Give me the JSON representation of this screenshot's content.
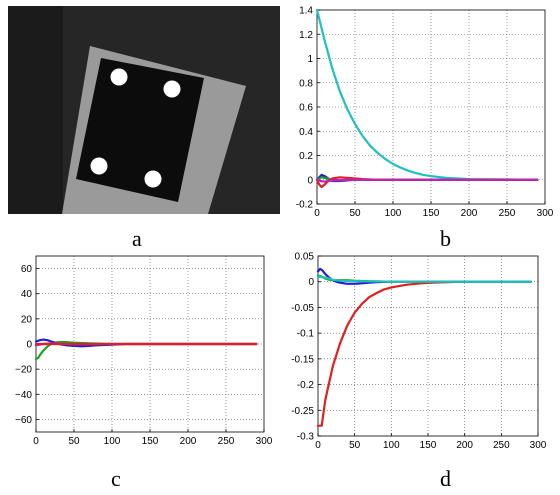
{
  "panel_labels": {
    "a": "a",
    "b": "b",
    "c": "c",
    "d": "d"
  },
  "image_a": {
    "subject": "grayscale camera image of a dark square target with four white circular dots mounted on a light panel",
    "dots": 4
  },
  "chart_data": [
    {
      "id": "b",
      "type": "line",
      "title": "",
      "xlabel": "",
      "ylabel": "",
      "xlim": [
        0,
        300
      ],
      "ylim": [
        -0.2,
        1.4
      ],
      "xticks": [
        0,
        50,
        100,
        150,
        200,
        250,
        300
      ],
      "yticks": [
        -0.2,
        0,
        0.2,
        0.4,
        0.6,
        0.8,
        1,
        1.2,
        1.4
      ],
      "ytick_labels": [
        "-0.2",
        "0",
        "0.2",
        "0.4",
        "0.6",
        "0.8",
        "1",
        "1.2",
        "1.4"
      ],
      "grid": true,
      "series": [
        {
          "color": "#20c0c0",
          "x": [
            0,
            10,
            20,
            30,
            40,
            50,
            60,
            70,
            80,
            90,
            100,
            110,
            120,
            130,
            140,
            150,
            170,
            200,
            250,
            290
          ],
          "y": [
            1.4,
            1.15,
            0.92,
            0.73,
            0.58,
            0.46,
            0.36,
            0.28,
            0.22,
            0.17,
            0.13,
            0.1,
            0.075,
            0.055,
            0.04,
            0.03,
            0.015,
            0.005,
            0.002,
            0
          ]
        },
        {
          "color": "#2020d0",
          "x": [
            0,
            3,
            6,
            10,
            15,
            20,
            30,
            40,
            50,
            70,
            100,
            150,
            290
          ],
          "y": [
            0,
            0.02,
            0.04,
            0.03,
            0.01,
            -0.01,
            -0.01,
            -0.005,
            0,
            0,
            0,
            0,
            0
          ]
        },
        {
          "color": "#20a020",
          "x": [
            0,
            3,
            6,
            10,
            15,
            20,
            30,
            40,
            60,
            100,
            150,
            290
          ],
          "y": [
            0,
            0.01,
            0.02,
            0.015,
            0.005,
            0,
            -0.005,
            0,
            0,
            0,
            0,
            0
          ]
        },
        {
          "color": "#e02020",
          "x": [
            0,
            3,
            6,
            10,
            15,
            20,
            30,
            40,
            50,
            60,
            80,
            100,
            150,
            290
          ],
          "y": [
            0,
            -0.04,
            -0.06,
            -0.04,
            -0.01,
            0.01,
            0.02,
            0.015,
            0.01,
            0.005,
            0,
            0,
            0,
            0
          ]
        },
        {
          "color": "#c020c0",
          "x": [
            0,
            5,
            10,
            20,
            40,
            290
          ],
          "y": [
            0,
            -0.01,
            -0.015,
            -0.005,
            0,
            0
          ]
        }
      ]
    },
    {
      "id": "c",
      "type": "line",
      "title": "",
      "xlabel": "",
      "ylabel": "",
      "xlim": [
        0,
        300
      ],
      "ylim": [
        -70,
        70
      ],
      "xticks": [
        0,
        50,
        100,
        150,
        200,
        250,
        300
      ],
      "yticks": [
        -60,
        -40,
        -20,
        0,
        20,
        40,
        60
      ],
      "ytick_labels": [
        "−60",
        "−40",
        "−20",
        "0",
        "20",
        "40",
        "60"
      ],
      "grid": true,
      "series": [
        {
          "color": "#20a020",
          "x": [
            0,
            3,
            6,
            10,
            15,
            20,
            25,
            30,
            40,
            50,
            70,
            100,
            150,
            200,
            250,
            290
          ],
          "y": [
            -12,
            -11,
            -8,
            -5,
            -2,
            0,
            1,
            1.5,
            1.5,
            1,
            0.5,
            0,
            0,
            0,
            0,
            0
          ]
        },
        {
          "color": "#2020d0",
          "x": [
            0,
            5,
            10,
            15,
            20,
            25,
            30,
            40,
            50,
            60,
            70,
            80,
            100,
            120,
            150,
            200,
            290
          ],
          "y": [
            2,
            3,
            3.5,
            3,
            2,
            1,
            0,
            -1,
            -1.5,
            -1.8,
            -1.5,
            -1,
            -0.5,
            0,
            0,
            0,
            0
          ]
        },
        {
          "color": "#c020c0",
          "x": [
            0,
            5,
            10,
            20,
            30,
            40,
            50,
            70,
            100,
            150,
            290
          ],
          "y": [
            -1,
            -0.5,
            0,
            0.5,
            0.3,
            0,
            -0.2,
            -0.3,
            0,
            0,
            0
          ]
        },
        {
          "color": "#e02020",
          "x": [
            0,
            20,
            50,
            100,
            150,
            200,
            250,
            290
          ],
          "y": [
            0,
            0,
            0,
            0,
            0,
            0,
            0,
            0
          ]
        }
      ]
    },
    {
      "id": "d",
      "type": "line",
      "title": "",
      "xlabel": "",
      "ylabel": "",
      "xlim": [
        0,
        300
      ],
      "ylim": [
        -0.3,
        0.05
      ],
      "xticks": [
        0,
        50,
        100,
        150,
        200,
        250,
        300
      ],
      "yticks": [
        -0.3,
        -0.25,
        -0.2,
        -0.15,
        -0.1,
        -0.05,
        0,
        0.05
      ],
      "ytick_labels": [
        "-0.3",
        "-0.25",
        "-0.2",
        "-0.15",
        "-0.1",
        "-0.05",
        "0",
        "0.05"
      ],
      "grid": true,
      "series": [
        {
          "color": "#e02020",
          "x": [
            0,
            5,
            10,
            20,
            30,
            40,
            50,
            60,
            70,
            80,
            90,
            100,
            120,
            140,
            160,
            200,
            250,
            290
          ],
          "y": [
            -0.28,
            -0.28,
            -0.23,
            -0.165,
            -0.12,
            -0.085,
            -0.06,
            -0.043,
            -0.03,
            -0.022,
            -0.015,
            -0.011,
            -0.006,
            -0.003,
            -0.0015,
            0,
            0,
            0
          ]
        },
        {
          "color": "#2020d0",
          "x": [
            0,
            3,
            6,
            10,
            15,
            20,
            25,
            30,
            40,
            50,
            60,
            70,
            80,
            100,
            150,
            290
          ],
          "y": [
            0.02,
            0.025,
            0.022,
            0.015,
            0.008,
            0.003,
            0,
            -0.002,
            -0.004,
            -0.004,
            -0.003,
            -0.002,
            -0.001,
            0,
            0,
            0
          ]
        },
        {
          "color": "#20a020",
          "x": [
            0,
            5,
            10,
            15,
            20,
            30,
            40,
            50,
            70,
            100,
            150,
            290
          ],
          "y": [
            0.012,
            0.01,
            0.006,
            0.004,
            0.003,
            0.003,
            0.003,
            0.002,
            0.001,
            0,
            0,
            0
          ]
        },
        {
          "color": "#20c0c0",
          "x": [
            0,
            10,
            20,
            30,
            50,
            100,
            150,
            290
          ],
          "y": [
            0.01,
            0.008,
            0.004,
            0.002,
            0.001,
            0,
            0,
            0
          ]
        }
      ]
    }
  ]
}
